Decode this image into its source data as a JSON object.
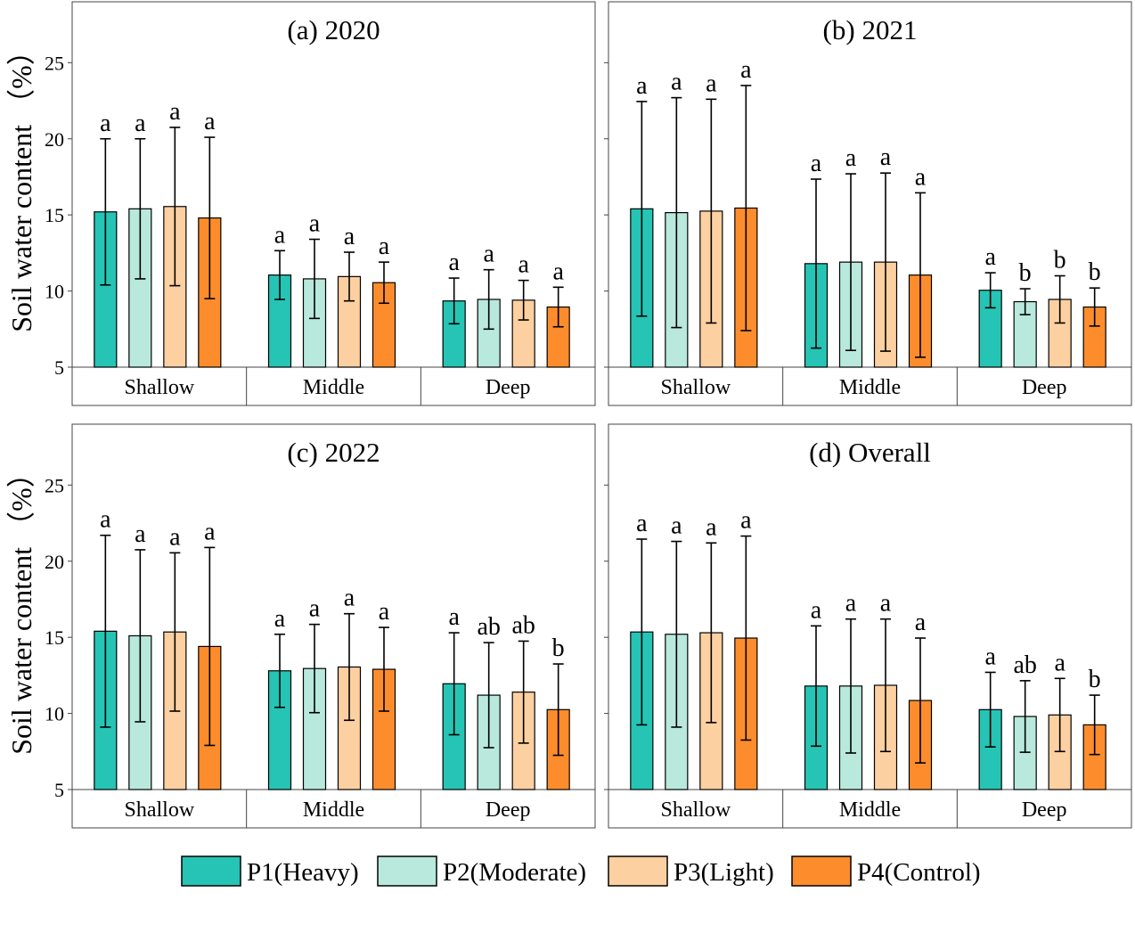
{
  "colors": {
    "P1": "#26c4b4",
    "P2": "#b8e9dc",
    "P3": "#fdd0a2",
    "P4": "#fd8d2c",
    "stroke": "#000000"
  },
  "legend": [
    {
      "key": "P1",
      "label": "P1(Heavy)"
    },
    {
      "key": "P2",
      "label": "P2(Moderate)"
    },
    {
      "key": "P3",
      "label": "P3(Light)"
    },
    {
      "key": "P4",
      "label": "P4(Control)"
    }
  ],
  "chart_data": [
    {
      "type": "bar",
      "title": "(a) 2020",
      "ylabel": "Soil water content （%）",
      "ylim": [
        5,
        29
      ],
      "yticks": [
        5,
        10,
        15,
        20,
        25
      ],
      "categories": [
        "Shallow",
        "Middle",
        "Deep"
      ],
      "series": [
        {
          "name": "P1(Heavy)",
          "values": [
            15.2,
            11.05,
            9.35
          ],
          "errors": [
            4.8,
            1.6,
            1.5
          ],
          "letters": [
            "a",
            "a",
            "a"
          ]
        },
        {
          "name": "P2(Moderate)",
          "values": [
            15.4,
            10.8,
            9.45
          ],
          "errors": [
            4.6,
            2.6,
            1.95
          ],
          "letters": [
            "a",
            "a",
            "a"
          ]
        },
        {
          "name": "P3(Light)",
          "values": [
            15.55,
            10.95,
            9.4
          ],
          "errors": [
            5.2,
            1.6,
            1.3
          ],
          "letters": [
            "a",
            "a",
            "a"
          ]
        },
        {
          "name": "P4(Control)",
          "values": [
            14.8,
            10.55,
            8.95
          ],
          "errors": [
            5.3,
            1.35,
            1.3
          ],
          "letters": [
            "a",
            "a",
            "a"
          ]
        }
      ]
    },
    {
      "type": "bar",
      "title": "(b) 2021",
      "ylabel": "",
      "ylim": [
        5,
        29
      ],
      "yticks": [
        5,
        10,
        15,
        20,
        25
      ],
      "categories": [
        "Shallow",
        "Middle",
        "Deep"
      ],
      "series": [
        {
          "name": "P1(Heavy)",
          "values": [
            15.4,
            11.8,
            10.05
          ],
          "errors": [
            7.05,
            5.55,
            1.15
          ],
          "letters": [
            "a",
            "a",
            "a"
          ]
        },
        {
          "name": "P2(Moderate)",
          "values": [
            15.15,
            11.9,
            9.3
          ],
          "errors": [
            7.55,
            5.8,
            0.85
          ],
          "letters": [
            "a",
            "a",
            "b"
          ]
        },
        {
          "name": "P3(Light)",
          "values": [
            15.25,
            11.9,
            9.45
          ],
          "errors": [
            7.35,
            5.85,
            1.55
          ],
          "letters": [
            "a",
            "a",
            "b"
          ]
        },
        {
          "name": "P4(Control)",
          "values": [
            15.45,
            11.05,
            8.95
          ],
          "errors": [
            8.05,
            5.4,
            1.25
          ],
          "letters": [
            "a",
            "a",
            "b"
          ]
        }
      ]
    },
    {
      "type": "bar",
      "title": "(c) 2022",
      "ylabel": "Soil water content （%）",
      "ylim": [
        5,
        29
      ],
      "yticks": [
        5,
        10,
        15,
        20,
        25
      ],
      "categories": [
        "Shallow",
        "Middle",
        "Deep"
      ],
      "series": [
        {
          "name": "P1(Heavy)",
          "values": [
            15.4,
            12.8,
            11.95
          ],
          "errors": [
            6.3,
            2.4,
            3.35
          ],
          "letters": [
            "a",
            "a",
            "a"
          ]
        },
        {
          "name": "P2(Moderate)",
          "values": [
            15.1,
            12.95,
            11.2
          ],
          "errors": [
            5.65,
            2.9,
            3.45
          ],
          "letters": [
            "a",
            "a",
            "ab"
          ]
        },
        {
          "name": "P3(Light)",
          "values": [
            15.35,
            13.05,
            11.4
          ],
          "errors": [
            5.2,
            3.5,
            3.35
          ],
          "letters": [
            "a",
            "a",
            "ab"
          ]
        },
        {
          "name": "P4(Control)",
          "values": [
            14.4,
            12.9,
            10.25
          ],
          "errors": [
            6.5,
            2.75,
            3.0
          ],
          "letters": [
            "a",
            "a",
            "b"
          ]
        }
      ]
    },
    {
      "type": "bar",
      "title": "(d) Overall",
      "ylabel": "",
      "ylim": [
        5,
        29
      ],
      "yticks": [
        5,
        10,
        15,
        20,
        25
      ],
      "categories": [
        "Shallow",
        "Middle",
        "Deep"
      ],
      "series": [
        {
          "name": "P1(Heavy)",
          "values": [
            15.35,
            11.8,
            10.25
          ],
          "errors": [
            6.1,
            3.95,
            2.45
          ],
          "letters": [
            "a",
            "a",
            "a"
          ]
        },
        {
          "name": "P2(Moderate)",
          "values": [
            15.2,
            11.8,
            9.8
          ],
          "errors": [
            6.1,
            4.4,
            2.35
          ],
          "letters": [
            "a",
            "a",
            "ab"
          ]
        },
        {
          "name": "P3(Light)",
          "values": [
            15.3,
            11.85,
            9.9
          ],
          "errors": [
            5.9,
            4.35,
            2.4
          ],
          "letters": [
            "a",
            "a",
            "a"
          ]
        },
        {
          "name": "P4(Control)",
          "values": [
            14.95,
            10.85,
            9.25
          ],
          "errors": [
            6.7,
            4.1,
            1.95
          ],
          "letters": [
            "a",
            "a",
            "b"
          ]
        }
      ]
    }
  ]
}
